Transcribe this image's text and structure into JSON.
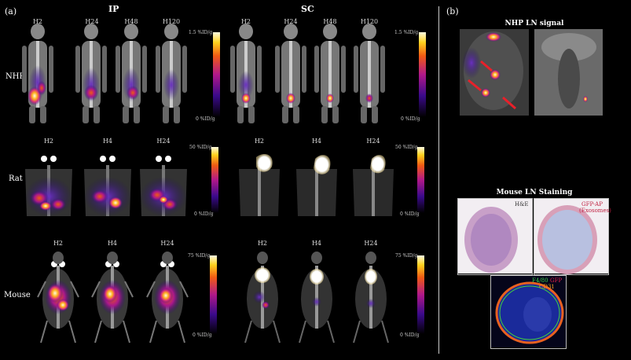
{
  "panel_a_label": "(a)",
  "panel_b_label": "(b)",
  "groups": {
    "ip": "IP",
    "sc": "SC"
  },
  "rows": {
    "nhp": "NHP",
    "rat": "Rat",
    "mouse": "Mouse"
  },
  "nhp_timepoints": [
    "H2",
    "H24",
    "H48",
    "H120"
  ],
  "rodent_timepoints": [
    "H2",
    "H4",
    "H24"
  ],
  "colorbars": {
    "nhp_max": "1.5 %ID/g",
    "rat_max": "50 %ID/g",
    "mouse_max": "75 %ID/g",
    "min": "0 %ID/g"
  },
  "nhp_ln_title": "NHP LN signal",
  "mouse_ln_title": "Mouse LN Staining",
  "stain": {
    "he": "H&E",
    "gfp_ap": "GFP-AP",
    "exosomes": "(Exosomes)",
    "f480": "F4/80",
    "gfp": "GFP",
    "cd31": "CD31"
  },
  "colors": {
    "divider": "#cccccc",
    "red_arrow": "#e8202a",
    "gfp_text": "#e8204a",
    "f480_text": "#3ad04a",
    "cd31_text": "#f0a020"
  }
}
